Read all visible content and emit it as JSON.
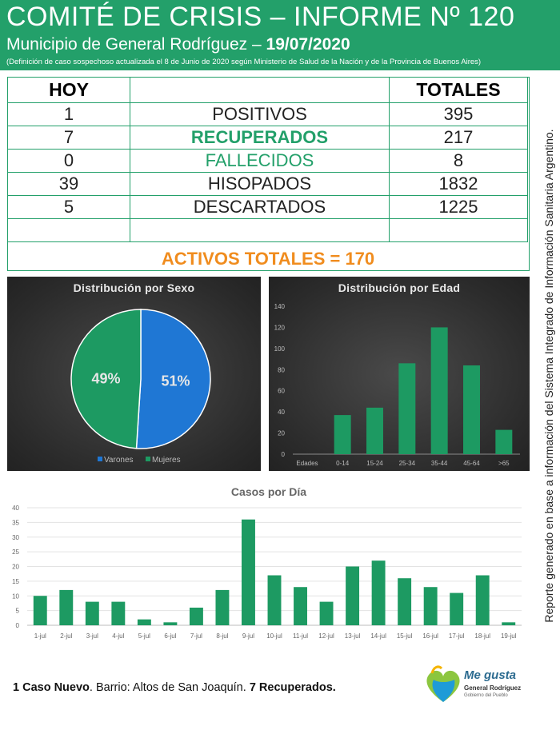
{
  "header": {
    "title": "COMITÉ DE CRISIS – INFORME Nº 120",
    "subtitle_prefix": "Municipio de General Rodríguez – ",
    "subtitle_date": "19/07/2020",
    "note": "(Definición de caso sospechoso actualizada el 8 de Junio de 2020 según Ministerio de Salud de la Nación y de la Provincia de Buenos Aires)"
  },
  "stats_table": {
    "col_hoy": "HOY",
    "col_totales": "TOTALES",
    "rows": [
      {
        "hoy": "1",
        "label": "POSITIVOS",
        "total": "395"
      },
      {
        "hoy": "7",
        "label": "RECUPERADOS",
        "total": "217"
      },
      {
        "hoy": "0",
        "label": "FALLECIDOS",
        "total": "8"
      },
      {
        "hoy": "39",
        "label": "HISOPADOS",
        "total": "1832"
      },
      {
        "hoy": "5",
        "label": "DESCARTADOS",
        "total": "1225"
      }
    ],
    "activos": "ACTIVOS TOTALES = 170"
  },
  "side_note": "Reporte generado en base a información del Sistema Integrado de Información Sanitaria Argentino.",
  "chart_data": [
    {
      "type": "pie",
      "title": "Distribución por Sexo",
      "labels": [
        "Varones",
        "Mujeres"
      ],
      "values": [
        51,
        49
      ],
      "value_labels": [
        "51%",
        "49%"
      ],
      "colors": [
        "#1f77d4",
        "#1d9a62"
      ],
      "legend": "bottom"
    },
    {
      "type": "bar",
      "title": "Distribución por Edad",
      "xlabel": "Edades",
      "categories": [
        "0-14",
        "15-24",
        "25-34",
        "35-44",
        "45-64",
        ">65"
      ],
      "values": [
        37,
        44,
        86,
        120,
        84,
        23
      ],
      "ylim": [
        0,
        140
      ],
      "yticks": [
        0,
        20,
        40,
        60,
        80,
        100,
        120,
        140
      ],
      "color": "#1d9a62"
    },
    {
      "type": "bar",
      "title": "Casos por Día",
      "categories": [
        "1-jul",
        "2-jul",
        "3-jul",
        "4-jul",
        "5-jul",
        "6-jul",
        "7-jul",
        "8-jul",
        "9-jul",
        "10-jul",
        "11-jul",
        "12-jul",
        "13-jul",
        "14-jul",
        "15-jul",
        "16-jul",
        "17-jul",
        "18-jul",
        "19-jul"
      ],
      "values": [
        10,
        12,
        8,
        8,
        2,
        1,
        6,
        12,
        36,
        17,
        13,
        8,
        20,
        22,
        16,
        13,
        11,
        17,
        1
      ],
      "ylim": [
        0,
        40
      ],
      "yticks": [
        0,
        5,
        10,
        15,
        20,
        25,
        30,
        35,
        40
      ],
      "color": "#1d9a62",
      "grid": true
    }
  ],
  "footer": {
    "bold1": "1 Caso Nuevo",
    "text1": ". Barrio: Altos de San Joaquín. ",
    "bold2": "7 Recuperados."
  },
  "logo": {
    "line1": "Me gusta",
    "line2": "General Rodríguez",
    "line3": "Gobierno del Pueblo"
  }
}
